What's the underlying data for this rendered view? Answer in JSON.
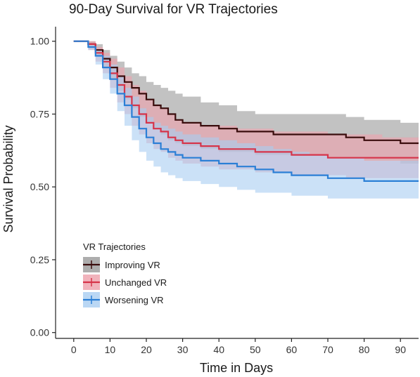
{
  "chart_data": {
    "type": "line",
    "subtype": "kaplan-meier step curves with confidence bands",
    "title": "90-Day Survival for VR Trajectories",
    "xlabel": "Time in Days",
    "ylabel": "Survival Probability",
    "xlim": [
      -5,
      95
    ],
    "ylim": [
      -0.02,
      1.05
    ],
    "x_ticks": [
      0,
      10,
      20,
      30,
      40,
      50,
      60,
      70,
      80,
      90
    ],
    "y_ticks": [
      0.0,
      0.25,
      0.5,
      0.75,
      1.0
    ],
    "y_tick_labels": [
      "0.00",
      "0.25",
      "0.50",
      "0.75",
      "1.00"
    ],
    "grid": false,
    "legend": {
      "title": "VR Trajectories",
      "placement": "bottom-left"
    },
    "series": [
      {
        "name": "Improving VR",
        "color": "#3a0d0d",
        "band_color": "#999999",
        "x": [
          0,
          2,
          4,
          6,
          8,
          10,
          12,
          14,
          16,
          18,
          20,
          22,
          24,
          26,
          28,
          30,
          35,
          40,
          45,
          50,
          55,
          60,
          70,
          75,
          80,
          85,
          90,
          95
        ],
        "y": [
          1.0,
          1.0,
          0.99,
          0.97,
          0.94,
          0.91,
          0.88,
          0.86,
          0.84,
          0.82,
          0.8,
          0.78,
          0.77,
          0.75,
          0.73,
          0.72,
          0.71,
          0.7,
          0.69,
          0.69,
          0.68,
          0.68,
          0.68,
          0.67,
          0.66,
          0.66,
          0.65,
          0.65
        ],
        "lower": [
          1.0,
          1.0,
          0.98,
          0.95,
          0.91,
          0.87,
          0.83,
          0.8,
          0.77,
          0.74,
          0.72,
          0.7,
          0.68,
          0.66,
          0.65,
          0.64,
          0.63,
          0.62,
          0.62,
          0.61,
          0.61,
          0.61,
          0.6,
          0.6,
          0.59,
          0.59,
          0.58,
          0.58
        ],
        "upper": [
          1.0,
          1.0,
          1.0,
          0.99,
          0.97,
          0.95,
          0.93,
          0.91,
          0.89,
          0.88,
          0.86,
          0.85,
          0.84,
          0.83,
          0.82,
          0.81,
          0.79,
          0.78,
          0.76,
          0.75,
          0.75,
          0.75,
          0.75,
          0.74,
          0.73,
          0.73,
          0.72,
          0.72
        ]
      },
      {
        "name": "Unchanged VR",
        "color": "#d6344a",
        "band_color": "#eea0ab",
        "x": [
          0,
          2,
          4,
          6,
          8,
          10,
          12,
          14,
          16,
          18,
          20,
          22,
          24,
          26,
          28,
          30,
          35,
          40,
          45,
          50,
          55,
          60,
          65,
          70,
          75,
          80,
          85,
          90,
          95
        ],
        "y": [
          1.0,
          1.0,
          0.99,
          0.96,
          0.93,
          0.89,
          0.85,
          0.81,
          0.78,
          0.75,
          0.72,
          0.7,
          0.69,
          0.67,
          0.66,
          0.65,
          0.64,
          0.63,
          0.63,
          0.62,
          0.62,
          0.61,
          0.61,
          0.6,
          0.6,
          0.6,
          0.6,
          0.6,
          0.6
        ],
        "lower": [
          1.0,
          1.0,
          0.97,
          0.93,
          0.89,
          0.84,
          0.79,
          0.75,
          0.71,
          0.68,
          0.65,
          0.63,
          0.62,
          0.6,
          0.59,
          0.58,
          0.57,
          0.56,
          0.56,
          0.55,
          0.55,
          0.54,
          0.54,
          0.54,
          0.53,
          0.53,
          0.53,
          0.53,
          0.53
        ],
        "upper": [
          1.0,
          1.0,
          1.0,
          0.98,
          0.96,
          0.94,
          0.91,
          0.88,
          0.85,
          0.83,
          0.8,
          0.78,
          0.77,
          0.75,
          0.73,
          0.72,
          0.71,
          0.71,
          0.7,
          0.7,
          0.69,
          0.69,
          0.69,
          0.68,
          0.68,
          0.68,
          0.67,
          0.67,
          0.67
        ]
      },
      {
        "name": "Worsening  VR",
        "color": "#2b7fd6",
        "band_color": "#a9cdf1",
        "x": [
          0,
          2,
          4,
          6,
          8,
          10,
          12,
          14,
          16,
          18,
          20,
          22,
          24,
          26,
          28,
          30,
          35,
          40,
          45,
          50,
          55,
          60,
          65,
          70,
          75,
          80,
          85,
          90,
          95
        ],
        "y": [
          1.0,
          1.0,
          0.98,
          0.95,
          0.91,
          0.87,
          0.82,
          0.78,
          0.74,
          0.7,
          0.67,
          0.65,
          0.63,
          0.62,
          0.61,
          0.6,
          0.59,
          0.58,
          0.57,
          0.56,
          0.55,
          0.54,
          0.54,
          0.53,
          0.53,
          0.52,
          0.52,
          0.52,
          0.52
        ],
        "lower": [
          1.0,
          1.0,
          0.97,
          0.92,
          0.87,
          0.82,
          0.76,
          0.71,
          0.66,
          0.62,
          0.59,
          0.57,
          0.55,
          0.54,
          0.53,
          0.52,
          0.51,
          0.5,
          0.49,
          0.48,
          0.48,
          0.47,
          0.47,
          0.46,
          0.46,
          0.46,
          0.46,
          0.46,
          0.46
        ],
        "upper": [
          1.0,
          1.0,
          0.99,
          0.97,
          0.95,
          0.92,
          0.88,
          0.84,
          0.81,
          0.77,
          0.74,
          0.72,
          0.71,
          0.7,
          0.69,
          0.68,
          0.67,
          0.66,
          0.65,
          0.64,
          0.63,
          0.62,
          0.61,
          0.6,
          0.6,
          0.59,
          0.59,
          0.59,
          0.59
        ]
      }
    ]
  }
}
